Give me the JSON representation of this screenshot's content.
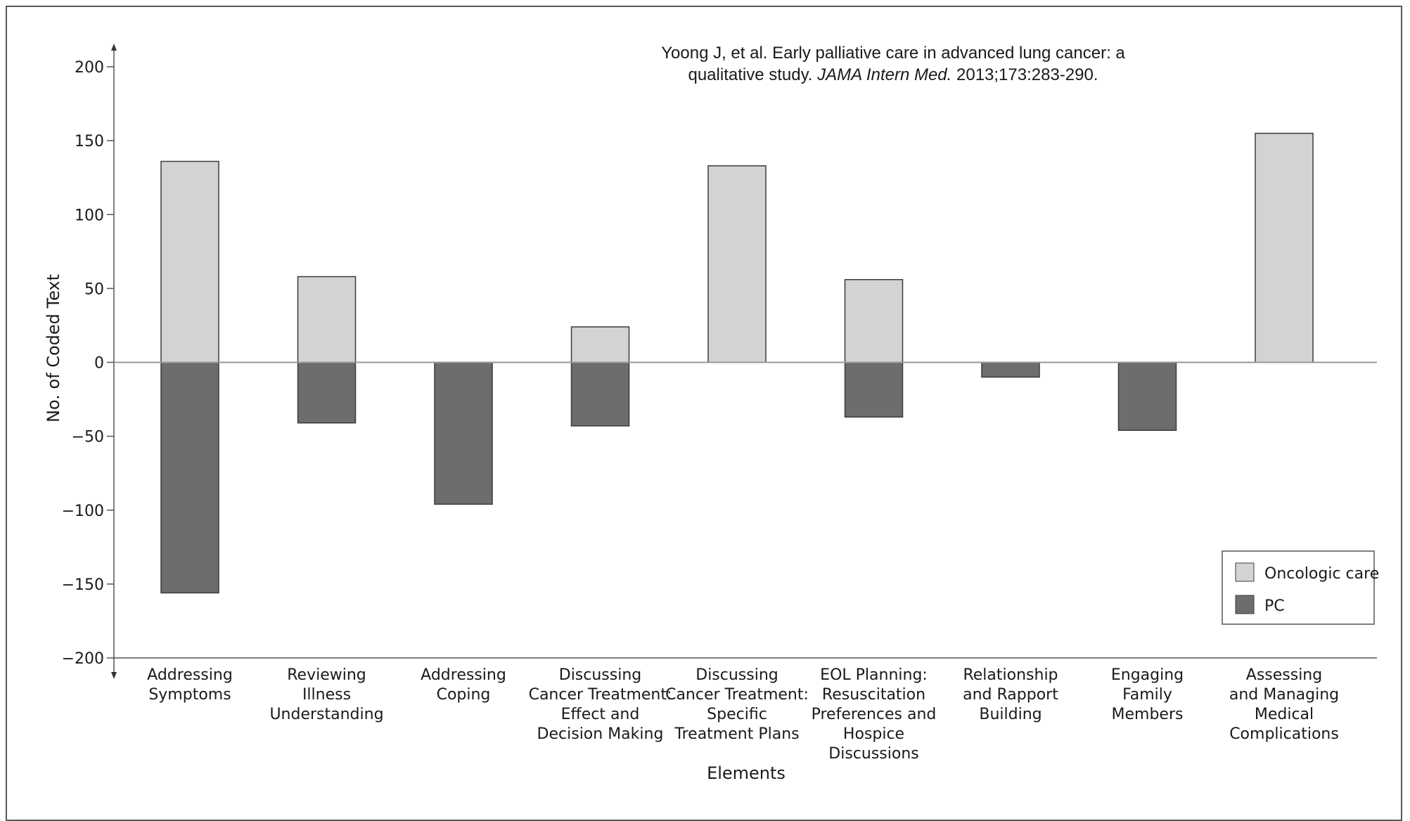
{
  "citation": {
    "line1": "Yoong J, et al. Early palliative care in advanced lung cancer: a",
    "line2_prefix": "qualitative study. ",
    "journal": "JAMA Intern Med.",
    "line2_suffix": " 2013;173:283-290."
  },
  "chart_data": {
    "type": "bar",
    "title": "",
    "xlabel": "Elements",
    "ylabel": "No. of Coded Text",
    "ylim": [
      -200,
      200
    ],
    "yticks": [
      200,
      150,
      100,
      50,
      0,
      -50,
      -100,
      -150,
      -200
    ],
    "ytick_labels": [
      "200",
      "150",
      "100",
      "50",
      "0",
      "−50",
      "−100",
      "−150",
      "−200"
    ],
    "categories": [
      [
        "Addressing",
        "Symptoms"
      ],
      [
        "Reviewing",
        "Illness",
        "Understanding"
      ],
      [
        "Addressing",
        "Coping"
      ],
      [
        "Discussing",
        "Cancer Treatment:",
        "Effect and",
        "Decision Making"
      ],
      [
        "Discussing",
        "Cancer Treatment:",
        "Specific",
        "Treatment Plans"
      ],
      [
        "EOL Planning:",
        "Resuscitation",
        "Preferences and",
        "Hospice",
        "Discussions"
      ],
      [
        "Relationship",
        "and Rapport",
        "Building"
      ],
      [
        "Engaging",
        "Family",
        "Members"
      ],
      [
        "Assessing",
        "and Managing",
        "Medical",
        "Complications"
      ]
    ],
    "series": [
      {
        "name": "Oncologic care",
        "color": "#d3d3d3",
        "values": [
          136,
          58,
          0,
          24,
          133,
          56,
          0,
          0,
          155
        ]
      },
      {
        "name": "PC",
        "color": "#6d6d6d",
        "values": [
          -156,
          -41,
          -96,
          -43,
          0,
          -37,
          -10,
          -46,
          0
        ]
      }
    ],
    "legend_position": "bottom-right",
    "grid": false
  }
}
